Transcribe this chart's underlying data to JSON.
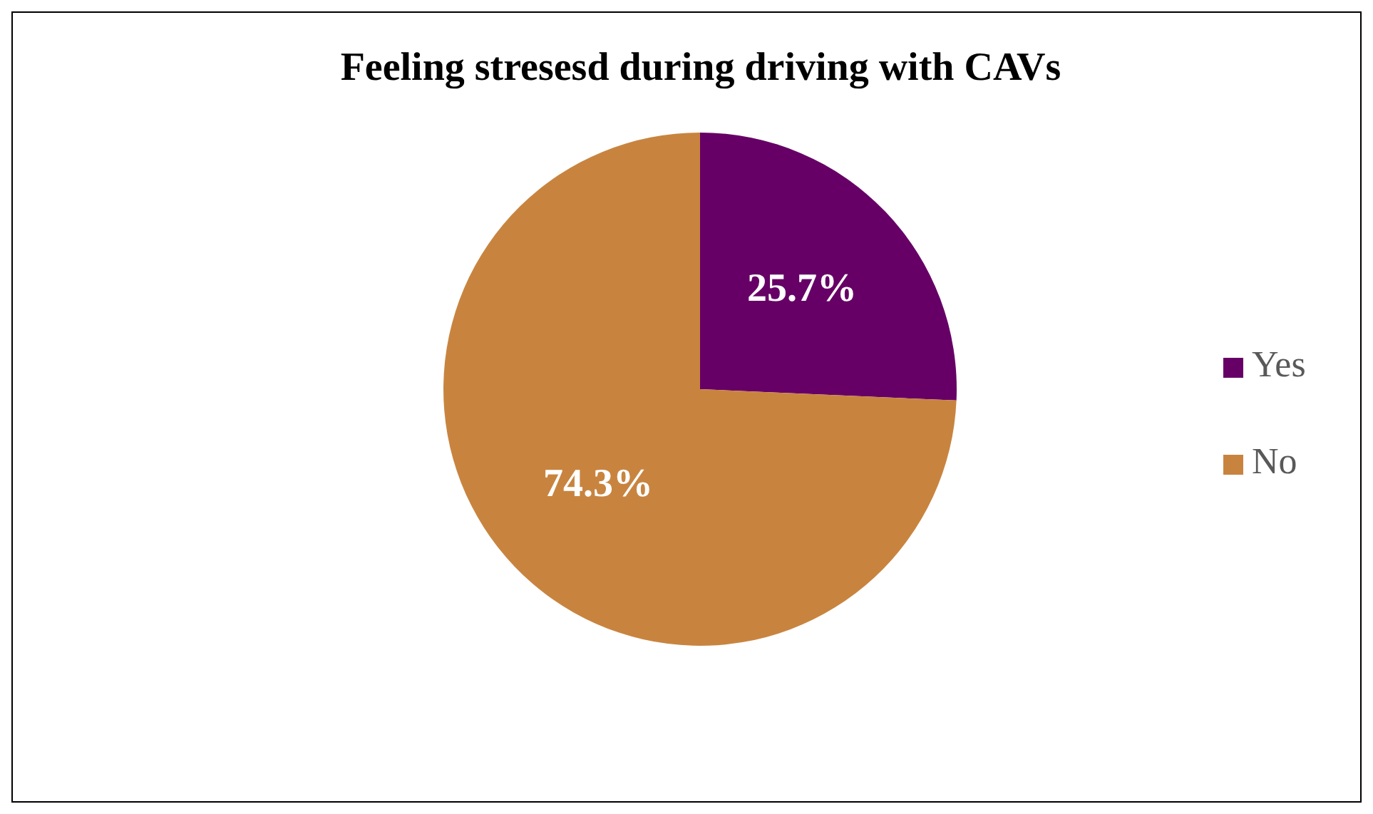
{
  "chart_data": {
    "type": "pie",
    "title": "Feeling stresesd during driving with CAVs",
    "categories": [
      "Yes",
      "No"
    ],
    "values": [
      25.7,
      74.3
    ],
    "colors": [
      "#660066",
      "#c8843f"
    ],
    "value_labels": [
      "25.7%",
      "74.3%"
    ],
    "legend": "right"
  }
}
